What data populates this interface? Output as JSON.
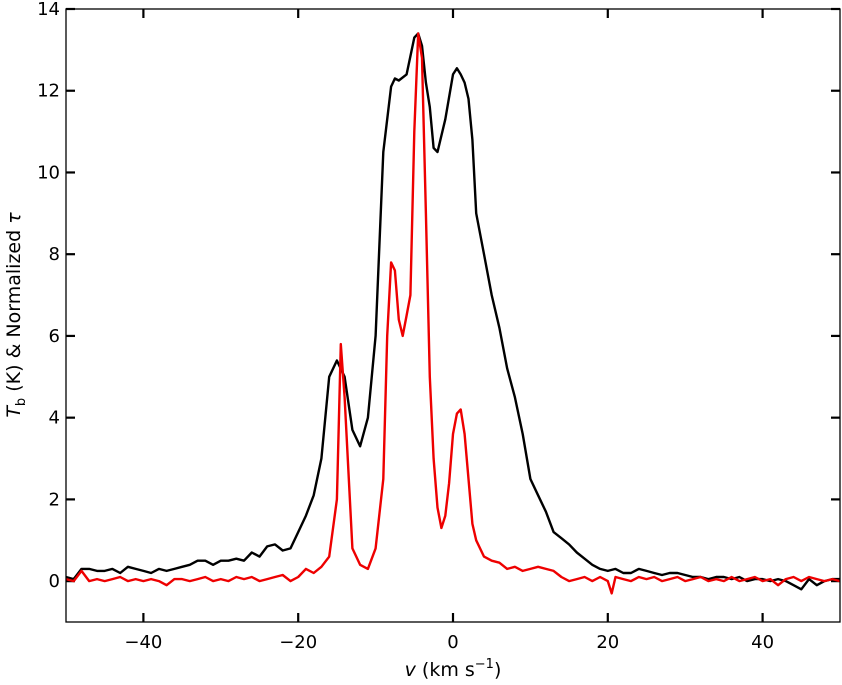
{
  "chart_data": {
    "type": "line",
    "title": "",
    "xlabel": {
      "italic": "v",
      "rest": " (km s",
      "sup": "−1",
      "close": ")"
    },
    "ylabel": {
      "italic": "T",
      "sub": "b",
      "rest": " (K) & Normalized ",
      "greek": "τ"
    },
    "xlim": [
      -50,
      50
    ],
    "ylim": [
      -1,
      14
    ],
    "xticks": [
      -40,
      -20,
      0,
      20,
      40
    ],
    "xtick_labels": [
      "−40",
      "−20",
      "0",
      "20",
      "40"
    ],
    "yticks": [
      0,
      2,
      4,
      6,
      8,
      10,
      12,
      14
    ],
    "ytick_labels": [
      "0",
      "2",
      "4",
      "6",
      "8",
      "10",
      "12",
      "14"
    ],
    "grid": false,
    "legend": "none",
    "series": [
      {
        "color": "#000000",
        "x": [
          -50,
          -49,
          -48,
          -47,
          -46,
          -45,
          -44,
          -43,
          -42,
          -41,
          -40,
          -39,
          -38,
          -37,
          -36,
          -35,
          -34,
          -33,
          -32,
          -31,
          -30,
          -29,
          -28,
          -27,
          -26,
          -25,
          -24,
          -23,
          -22,
          -21,
          -20,
          -19,
          -18,
          -17,
          -16,
          -15,
          -14,
          -13,
          -12,
          -11,
          -10,
          -9,
          -8,
          -7.5,
          -7,
          -6,
          -5,
          -4.5,
          -4,
          -3.5,
          -3,
          -2.5,
          -2,
          -1,
          0,
          0.5,
          1,
          1.5,
          2,
          2.5,
          3,
          4,
          5,
          6,
          7,
          8,
          9,
          10,
          11,
          12,
          13,
          14,
          15,
          16,
          17,
          18,
          19,
          20,
          21,
          22,
          23,
          24,
          25,
          26,
          27,
          28,
          29,
          30,
          31,
          32,
          33,
          34,
          35,
          36,
          37,
          38,
          39,
          40,
          41,
          42,
          43,
          44,
          45,
          46,
          47,
          48,
          49,
          50
        ],
        "y": [
          0.1,
          0.05,
          0.3,
          0.3,
          0.25,
          0.25,
          0.3,
          0.2,
          0.35,
          0.3,
          0.25,
          0.2,
          0.3,
          0.25,
          0.3,
          0.35,
          0.4,
          0.5,
          0.5,
          0.4,
          0.5,
          0.5,
          0.55,
          0.5,
          0.7,
          0.6,
          0.85,
          0.9,
          0.75,
          0.8,
          1.2,
          1.6,
          2.1,
          3.0,
          5.0,
          5.4,
          5.0,
          3.7,
          3.3,
          4.0,
          6.0,
          10.5,
          12.1,
          12.3,
          12.25,
          12.4,
          13.3,
          13.4,
          13.1,
          12.2,
          11.6,
          10.6,
          10.5,
          11.3,
          12.4,
          12.55,
          12.4,
          12.2,
          11.8,
          10.8,
          9.0,
          8.0,
          7.0,
          6.2,
          5.2,
          4.5,
          3.6,
          2.5,
          2.1,
          1.7,
          1.2,
          1.05,
          0.9,
          0.7,
          0.55,
          0.4,
          0.3,
          0.25,
          0.3,
          0.2,
          0.2,
          0.3,
          0.25,
          0.2,
          0.15,
          0.2,
          0.2,
          0.15,
          0.1,
          0.1,
          0.05,
          0.1,
          0.1,
          0.05,
          0.1,
          0.0,
          0.05,
          0.05,
          0.0,
          0.05,
          0.0,
          -0.1,
          -0.2,
          0.05,
          -0.1,
          0.0,
          0.05,
          0.05
        ]
      },
      {
        "color": "#ee0000",
        "x": [
          -50,
          -49,
          -48,
          -47,
          -46,
          -45,
          -44,
          -43,
          -42,
          -41,
          -40,
          -39,
          -38,
          -37,
          -36,
          -35,
          -34,
          -33,
          -32,
          -31,
          -30,
          -29,
          -28,
          -27,
          -26,
          -25,
          -24,
          -23,
          -22,
          -21,
          -20,
          -19,
          -18,
          -17,
          -16,
          -15,
          -14.5,
          -14,
          -13,
          -12,
          -11,
          -10,
          -9,
          -8.5,
          -8,
          -7.5,
          -7,
          -6.5,
          -6,
          -5.5,
          -5,
          -4.5,
          -4,
          -3.5,
          -3,
          -2.5,
          -2,
          -1.5,
          -1,
          -0.5,
          0,
          0.5,
          1,
          1.5,
          2,
          2.5,
          3,
          4,
          5,
          6,
          7,
          8,
          9,
          10,
          11,
          12,
          13,
          14,
          15,
          16,
          17,
          18,
          19,
          20,
          20.5,
          21,
          22,
          23,
          24,
          25,
          26,
          27,
          28,
          29,
          30,
          31,
          32,
          33,
          34,
          35,
          36,
          37,
          38,
          39,
          40,
          41,
          42,
          43,
          44,
          45,
          46,
          47,
          48,
          49,
          50
        ],
        "y": [
          0.05,
          0.0,
          0.25,
          0.0,
          0.05,
          0.0,
          0.05,
          0.1,
          0.0,
          0.05,
          0.0,
          0.05,
          0.0,
          -0.1,
          0.05,
          0.05,
          0.0,
          0.05,
          0.1,
          0.0,
          0.05,
          0.0,
          0.1,
          0.05,
          0.1,
          0.0,
          0.05,
          0.1,
          0.15,
          0.0,
          0.1,
          0.3,
          0.2,
          0.35,
          0.6,
          2.0,
          5.8,
          4.5,
          0.8,
          0.4,
          0.3,
          0.8,
          2.5,
          6.0,
          7.8,
          7.6,
          6.4,
          6.0,
          6.5,
          7.0,
          11.0,
          13.4,
          12.8,
          9.0,
          5.0,
          3.0,
          1.8,
          1.3,
          1.6,
          2.4,
          3.6,
          4.1,
          4.2,
          3.6,
          2.5,
          1.4,
          1.0,
          0.6,
          0.5,
          0.45,
          0.3,
          0.35,
          0.25,
          0.3,
          0.35,
          0.3,
          0.25,
          0.1,
          0.0,
          0.05,
          0.1,
          0.0,
          0.1,
          0.0,
          -0.3,
          0.1,
          0.05,
          0.0,
          0.1,
          0.05,
          0.1,
          0.0,
          0.05,
          0.1,
          0.0,
          0.05,
          0.1,
          0.0,
          0.05,
          0.0,
          0.1,
          0.0,
          0.05,
          0.1,
          0.0,
          0.05,
          -0.1,
          0.05,
          0.1,
          0.0,
          0.1,
          0.05,
          0.0,
          0.05,
          0.0
        ]
      }
    ]
  }
}
